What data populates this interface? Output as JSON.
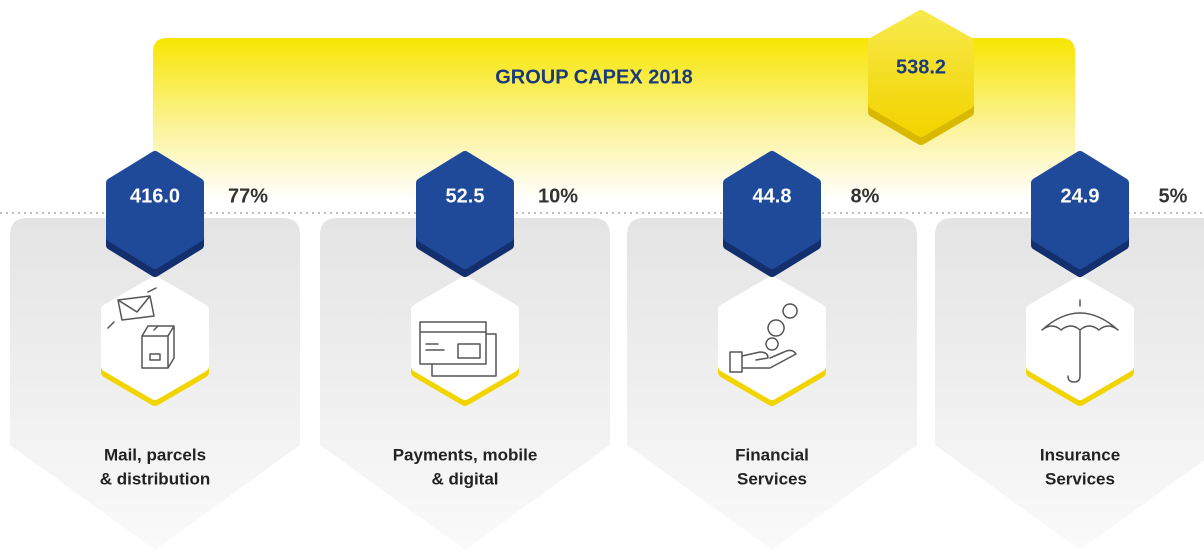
{
  "title": "GROUP CAPEX 2018",
  "total": "538.2",
  "segments": [
    {
      "value": "416.0",
      "percent": "77%",
      "label": [
        "Mail, parcels",
        "& distribution"
      ]
    },
    {
      "value": "52.5",
      "percent": "10%",
      "label": [
        "Payments, mobile",
        "& digital"
      ]
    },
    {
      "value": "44.8",
      "percent": "8%",
      "label": [
        "Financial",
        "Services"
      ]
    },
    {
      "value": "24.9",
      "percent": "5%",
      "label": [
        "Insurance",
        "Services"
      ]
    }
  ]
}
